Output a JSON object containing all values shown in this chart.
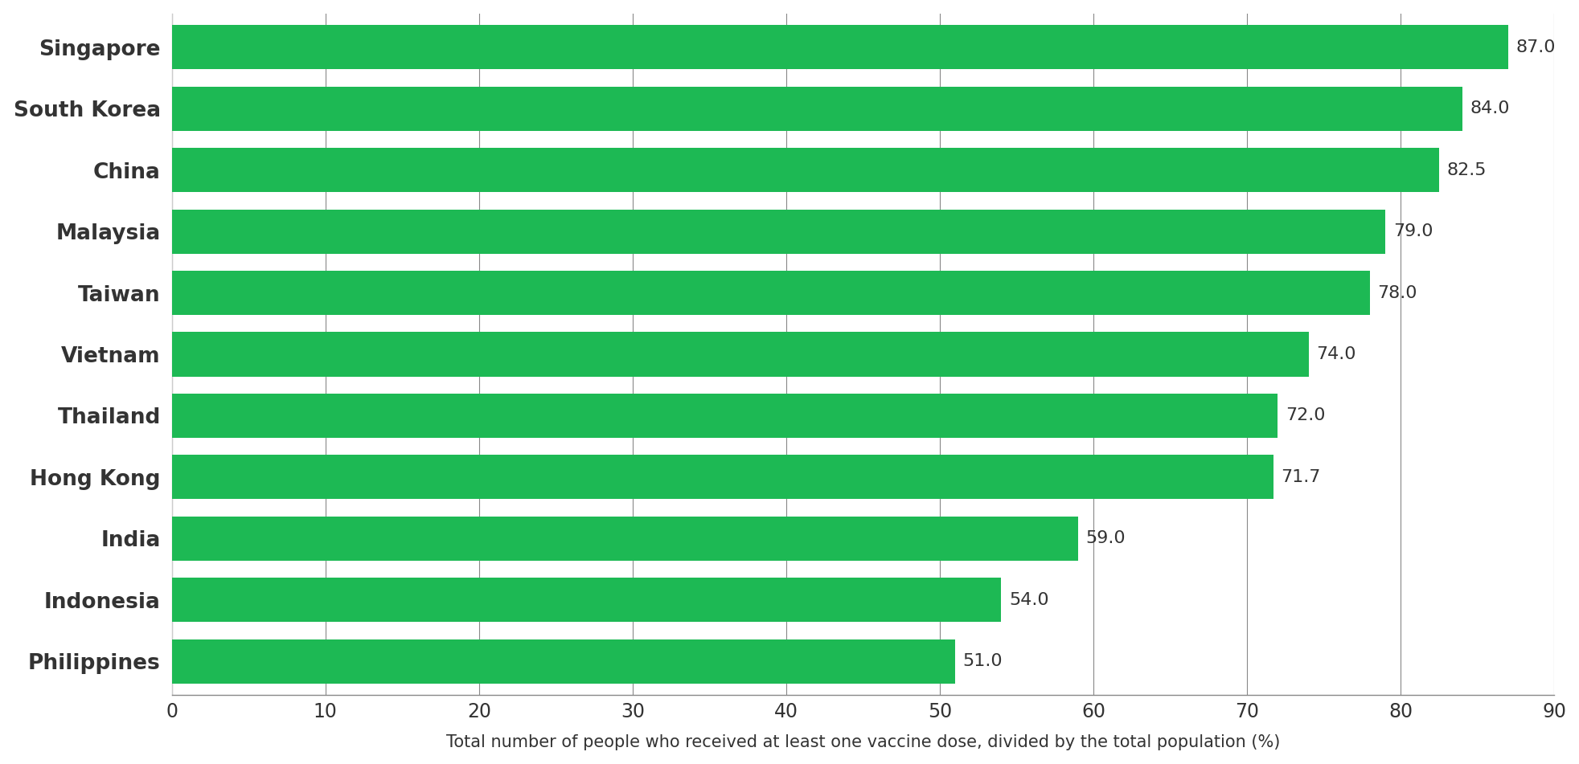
{
  "countries": [
    "Philippines",
    "Indonesia",
    "India",
    "Hong Kong",
    "Thailand",
    "Vietnam",
    "Taiwan",
    "Malaysia",
    "China",
    "South Korea",
    "Singapore"
  ],
  "values": [
    51.0,
    54.0,
    59.0,
    71.7,
    72.0,
    74.0,
    78.0,
    79.0,
    82.5,
    84.0,
    87.0
  ],
  "bar_color": "#1db954",
  "label_color": "#333333",
  "background_color": "#ffffff",
  "xlabel": "Total number of people who received at least one vaccine dose, divided by the total population (%)",
  "xlim": [
    0,
    90
  ],
  "xticks": [
    0,
    10,
    20,
    30,
    40,
    50,
    60,
    70,
    80,
    90
  ],
  "grid_color": "#888888",
  "bar_height": 0.72,
  "value_fontsize": 16,
  "label_fontsize": 19,
  "xlabel_fontsize": 15,
  "tick_fontsize": 17
}
